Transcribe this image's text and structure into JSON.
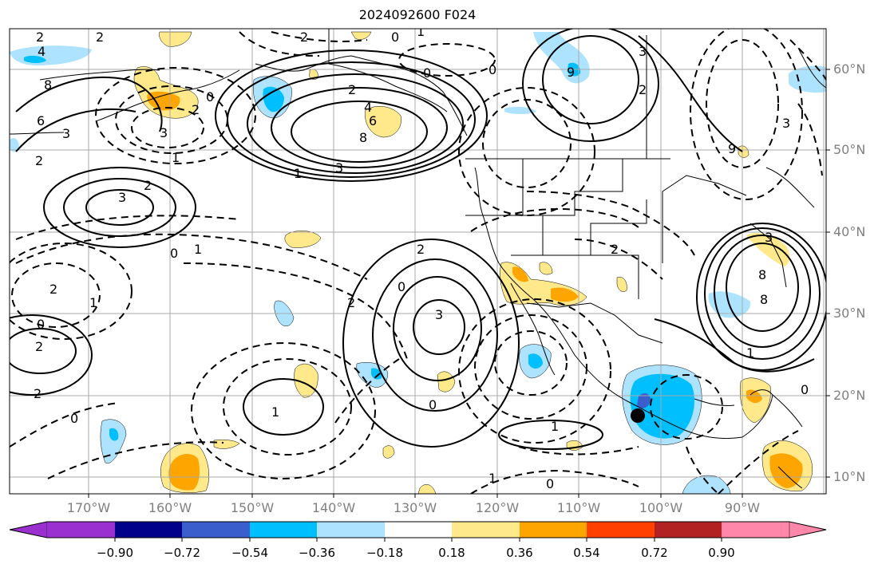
{
  "title": "2024092600 F024",
  "lat_labels": [
    "60°N",
    "50°N",
    "40°N",
    "30°N",
    "20°N",
    "10°N"
  ],
  "lon_labels": [
    "170°W",
    "160°W",
    "150°W",
    "140°W",
    "130°W",
    "120°W",
    "110°W",
    "100°W",
    "90°W"
  ],
  "colorbar": {
    "tick_labels": [
      "−0.90",
      "−0.72",
      "−0.54",
      "−0.36",
      "−0.18",
      "0.18",
      "0.36",
      "0.54",
      "0.72",
      "0.90"
    ],
    "colors": [
      "#9b30d0",
      "#00008b",
      "#3a5fcd",
      "#00bfff",
      "#aee3ff",
      "#ffffff",
      "#ffe98a",
      "#ffa500",
      "#ff4000",
      "#b22222",
      "#ff88aa"
    ]
  },
  "contour_labels": [
    "2",
    "4",
    "8",
    "6",
    "3",
    "2",
    "3",
    "2",
    "1",
    "0",
    "1",
    "3",
    "2",
    "0",
    "2",
    "0",
    "2",
    "1",
    "0",
    "2",
    "4",
    "6",
    "8",
    "3",
    "1",
    "2",
    "0",
    "2",
    "0",
    "2",
    "3",
    "0",
    "1",
    "1",
    "1",
    "0",
    "1",
    "2",
    "9",
    "0",
    "2",
    "3",
    "9",
    "3",
    "2",
    "8",
    "8",
    "3",
    "0",
    "1",
    "2",
    "0"
  ],
  "shading_colors": {
    "light_blue": "#aee3ff",
    "blue": "#00bfff",
    "yellow": "#ffe98a",
    "orange": "#ffa500"
  },
  "marker": {
    "label": "storm-center"
  }
}
